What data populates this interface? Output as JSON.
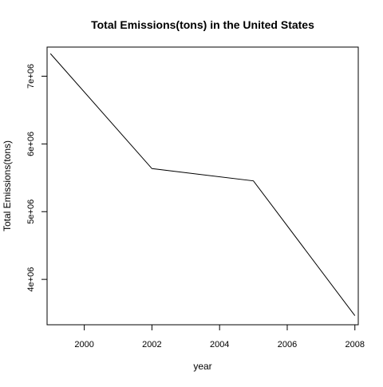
{
  "chart_data": {
    "type": "line",
    "title": "Total Emissions(tons) in the United States",
    "xlabel": "year",
    "ylabel": "Total Emissions(tons)",
    "x": [
      1999,
      2002,
      2005,
      2008
    ],
    "series": [
      {
        "values": [
          7332967,
          5635780,
          5454703,
          3464206
        ]
      }
    ],
    "xlim": [
      1998.9,
      2008.1
    ],
    "ylim": [
      3330000,
      7430000
    ],
    "x_ticks": [
      2000,
      2002,
      2004,
      2006,
      2008
    ],
    "x_tick_labels": [
      "2000",
      "2002",
      "2004",
      "2006",
      "2008"
    ],
    "y_ticks": [
      4000000,
      5000000,
      6000000,
      7000000
    ],
    "y_tick_labels": [
      "4e+06",
      "5e+06",
      "6e+06",
      "7e+06"
    ],
    "grid": false,
    "legend": "none",
    "line_color": "#000000"
  }
}
